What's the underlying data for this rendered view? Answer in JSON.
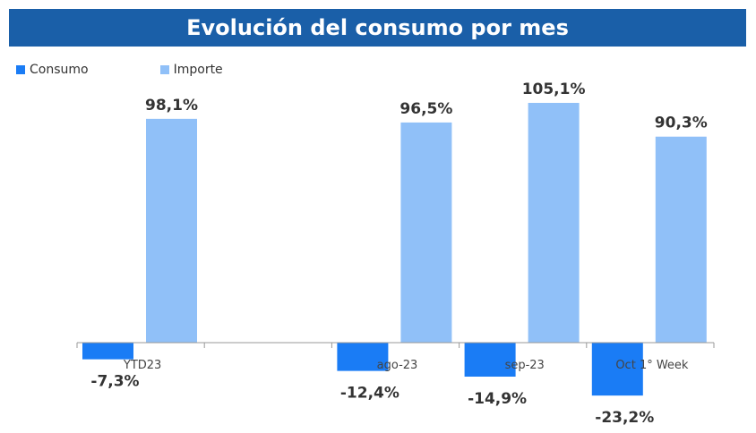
{
  "chart_data": {
    "type": "bar",
    "title": "Evolución del consumo por mes",
    "categories": [
      "YTD23",
      "",
      "ago-23",
      "sep-23",
      "Oct 1° Week"
    ],
    "series": [
      {
        "name": "Consumo",
        "color": "#1a7cf5",
        "values": [
          -7.3,
          null,
          -12.4,
          -14.9,
          -23.2
        ],
        "labels": [
          "-7,3%",
          "",
          "-12,4%",
          "-14,9%",
          "-23,2%"
        ]
      },
      {
        "name": "Importe",
        "color": "#90c0f8",
        "values": [
          98.1,
          null,
          96.5,
          105.1,
          90.3
        ],
        "labels": [
          "98,1%",
          "",
          "96,5%",
          "105,1%",
          "90,3%"
        ]
      }
    ],
    "xlabel": "",
    "ylabel": "",
    "grid": false,
    "legend_position": "top-left"
  }
}
